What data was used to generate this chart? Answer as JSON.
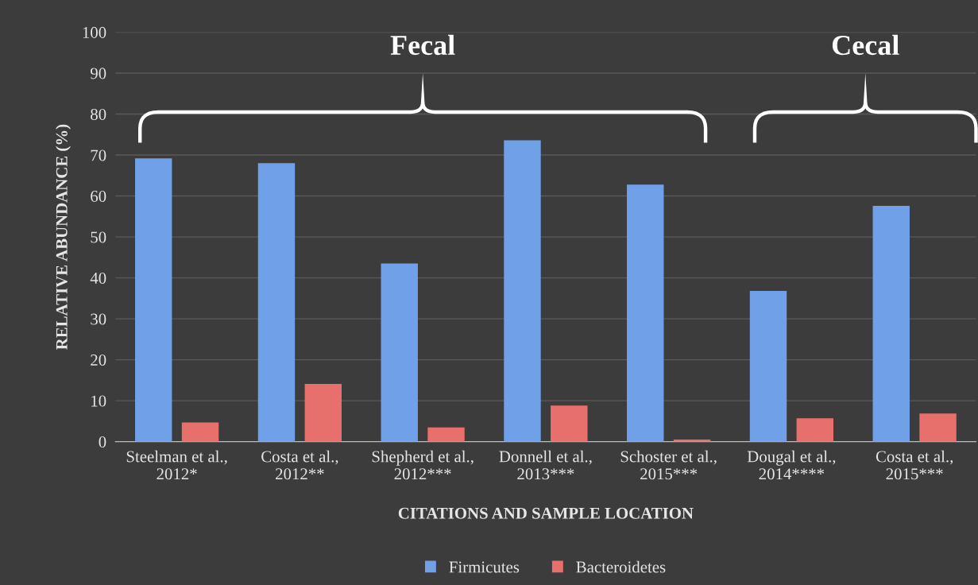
{
  "chart_data": {
    "type": "bar",
    "xlabel": "CITATIONS AND SAMPLE LOCATION",
    "ylabel": "RELATIVE ABUNDANCE (%)",
    "categories": [
      "Steelman et al.,\n2012*",
      "Costa et al.,\n2012**",
      "Shepherd et al.,\n2012***",
      "Donnell et al.,\n2013***",
      "Schoster et al.,\n2015***",
      "Dougal et al.,\n2014****",
      "Costa et al.,\n2015***"
    ],
    "series": [
      {
        "name": "Firmicutes",
        "color": "#6fa0e8",
        "values": [
          69.2,
          68,
          43.5,
          73.6,
          62.8,
          36.8,
          57.6
        ]
      },
      {
        "name": "Bacteroidetes",
        "color": "#e8706c",
        "values": [
          4.7,
          14.1,
          3.5,
          8.8,
          0.5,
          5.7,
          6.9
        ]
      }
    ],
    "annotations": [
      "Fecal",
      "Cecal"
    ],
    "ylim": [
      0,
      100
    ],
    "yticks": [
      0,
      10,
      20,
      30,
      40,
      50,
      60,
      70,
      80,
      90,
      100
    ],
    "grid": "y",
    "legend": "bottom"
  }
}
